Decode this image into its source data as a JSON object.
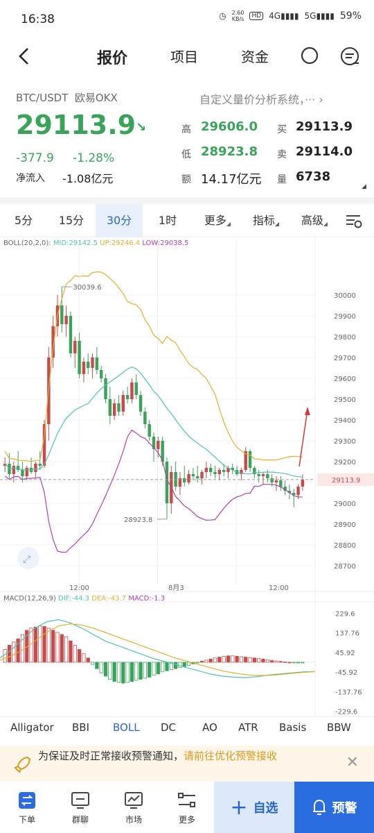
{
  "status": {
    "time": "16:38",
    "speed_value": "2.60",
    "speed_unit": "KB/s",
    "hd": "HD",
    "net4g": "4G",
    "net5g": "5G",
    "battery": "59%"
  },
  "header": {
    "tabs": [
      "报价",
      "项目",
      "资金"
    ]
  },
  "quote": {
    "pair": "BTC/USDT",
    "exchange": "欧易OKX",
    "price": "29113.9",
    "change": "-377.9",
    "change_pct": "-1.28%",
    "inflow_label": "净流入",
    "inflow_value": "-1.08亿元",
    "custom_system": "自定义量价分析系统，···",
    "stats": [
      {
        "label": "高",
        "value": "29606.0"
      },
      {
        "label": "买",
        "value": "29113.9"
      },
      {
        "label": "低",
        "value": "28923.8"
      },
      {
        "label": "卖",
        "value": "29114.0"
      },
      {
        "label": "额",
        "value": "14.17亿元"
      },
      {
        "label": "量",
        "value": "6738"
      }
    ]
  },
  "periods": [
    "5分",
    "15分",
    "30分",
    "1时",
    "更多",
    "指标",
    "高级"
  ],
  "chart_data": {
    "type": "candlestick",
    "boll_legend": {
      "name": "BOLL(20,2,0):",
      "mid": "MID:29142.5",
      "up": "UP:29246.4",
      "low": "LOW:29038.5"
    },
    "macd_legend": {
      "name": "MACD(12,26,9)",
      "dif": "DIF:-44.3",
      "dea": "DEA:-43.7",
      "macd": "MACD:-1.3"
    },
    "price_ticks": [
      "30000",
      "29900",
      "29800",
      "29700",
      "29600",
      "29500",
      "29400",
      "29300",
      "29200",
      "29100",
      "29000",
      "28900",
      "28800",
      "28700"
    ],
    "current_price_label": "29113.9",
    "high_label": "30039.6",
    "low_label": "28923.8",
    "time_ticks": [
      "12:00",
      "8月3",
      "12:00"
    ],
    "macd_ticks": [
      "229.6",
      "137.76",
      "45.92",
      "-45.92",
      "-137.76",
      "-229.6"
    ],
    "colors": {
      "up": "#c94a4a",
      "down": "#3aa35a",
      "mid": "#4cc4b0",
      "upper": "#e0b030",
      "lower": "#b040a8"
    }
  },
  "indicators": [
    "Alligator",
    "BBI",
    "BOLL",
    "DC",
    "AO",
    "ATR",
    "Basis",
    "BBW"
  ],
  "notice": {
    "text": "为保证及时正常接收预警通知，",
    "link": "请前往优化预警接收"
  },
  "bottom": {
    "items": [
      "下单",
      "群聊",
      "市场",
      "更多"
    ],
    "watch": "自选",
    "alert": "预警"
  }
}
